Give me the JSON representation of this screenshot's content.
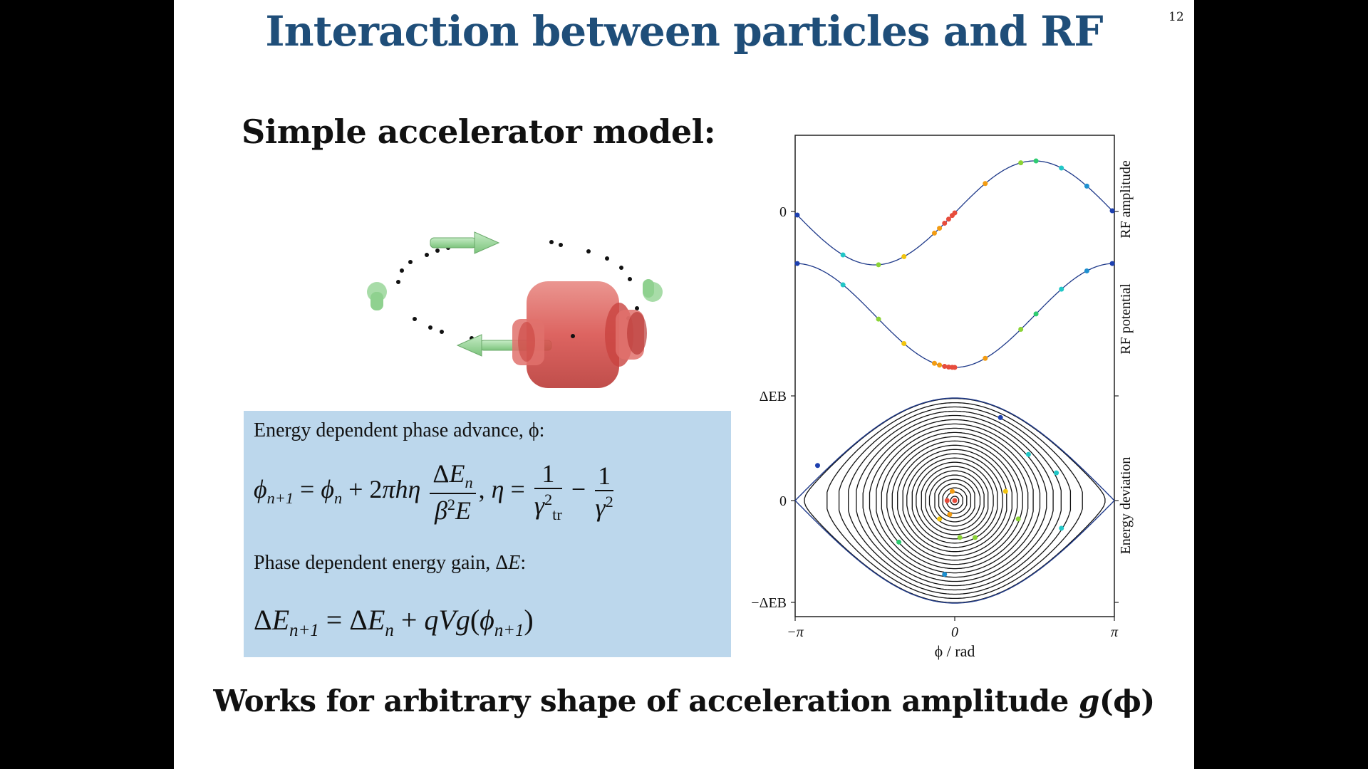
{
  "slide": {
    "title": "Interaction between particles and RF",
    "number": "12",
    "subtitle": "Simple accelerator model:",
    "footer_text": "Works for arbitrary shape of acceleration amplitude ",
    "footer_func": "g",
    "footer_arg": "(ϕ)"
  },
  "equations": {
    "caption1": "Energy dependent phase advance, ϕ:",
    "caption2_prefix": "Phase dependent energy gain, Δ",
    "caption2_var": "E",
    "caption2_suffix": ":"
  },
  "plot": {
    "right_labels": [
      "RF amplitude",
      "RF potential",
      "Energy deviation"
    ],
    "y_ticks": [
      "0",
      "ΔEB",
      "0",
      "−ΔEB"
    ],
    "x_ticks": [
      "−π",
      "0",
      "π"
    ],
    "xlabel": "ϕ / rad"
  },
  "colors": {
    "title": "#1f4e79",
    "box": "#bcd7ec",
    "curve": "#1f3a8a",
    "cavity": "#d9534f",
    "arrow": "#8fd18f"
  },
  "icons": [
    "ring-diagram",
    "rf-cavity-icon",
    "direction-arrow-icon"
  ]
}
